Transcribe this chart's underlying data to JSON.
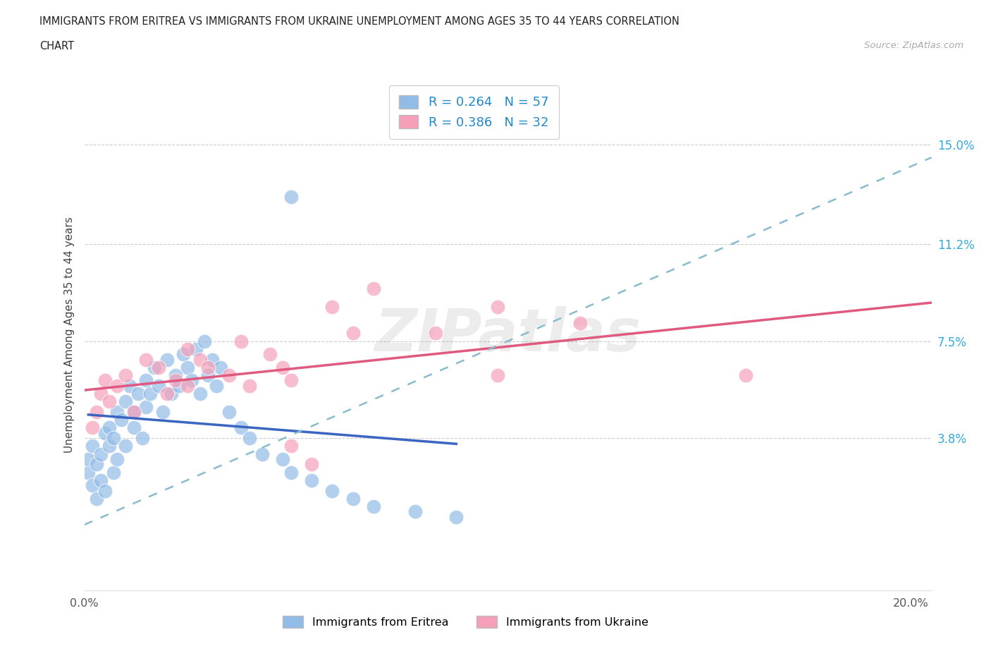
{
  "title_line1": "IMMIGRANTS FROM ERITREA VS IMMIGRANTS FROM UKRAINE UNEMPLOYMENT AMONG AGES 35 TO 44 YEARS CORRELATION",
  "title_line2": "CHART",
  "source": "Source: ZipAtlas.com",
  "ylabel": "Unemployment Among Ages 35 to 44 years",
  "xlim": [
    0.0,
    0.205
  ],
  "ylim": [
    -0.02,
    0.175
  ],
  "ytick_positions": [
    0.038,
    0.075,
    0.112,
    0.15
  ],
  "ytick_labels": [
    "3.8%",
    "7.5%",
    "11.2%",
    "15.0%"
  ],
  "R_eritrea": 0.264,
  "N_eritrea": 57,
  "R_ukraine": 0.386,
  "N_ukraine": 32,
  "color_eritrea": "#92bce8",
  "color_ukraine": "#f5a0b8",
  "color_eritrea_line": "#3a65c0",
  "color_ukraine_line": "#e05a80",
  "color_dashed": "#88bbcc",
  "legend_eritrea": "Immigrants from Eritrea",
  "legend_ukraine": "Immigrants from Ukraine",
  "eritrea_x": [
    0.001,
    0.001,
    0.002,
    0.002,
    0.003,
    0.003,
    0.004,
    0.004,
    0.005,
    0.005,
    0.006,
    0.006,
    0.007,
    0.007,
    0.008,
    0.008,
    0.009,
    0.01,
    0.01,
    0.011,
    0.012,
    0.012,
    0.013,
    0.014,
    0.015,
    0.015,
    0.016,
    0.017,
    0.018,
    0.019,
    0.02,
    0.021,
    0.022,
    0.023,
    0.024,
    0.025,
    0.026,
    0.027,
    0.028,
    0.029,
    0.03,
    0.031,
    0.032,
    0.033,
    0.035,
    0.038,
    0.04,
    0.043,
    0.048,
    0.05,
    0.055,
    0.06,
    0.065,
    0.07,
    0.08,
    0.09,
    0.05
  ],
  "eritrea_y": [
    0.025,
    0.03,
    0.02,
    0.035,
    0.028,
    0.015,
    0.032,
    0.022,
    0.04,
    0.018,
    0.035,
    0.042,
    0.038,
    0.025,
    0.048,
    0.03,
    0.045,
    0.052,
    0.035,
    0.058,
    0.048,
    0.042,
    0.055,
    0.038,
    0.06,
    0.05,
    0.055,
    0.065,
    0.058,
    0.048,
    0.068,
    0.055,
    0.062,
    0.058,
    0.07,
    0.065,
    0.06,
    0.072,
    0.055,
    0.075,
    0.062,
    0.068,
    0.058,
    0.065,
    0.048,
    0.042,
    0.038,
    0.032,
    0.03,
    0.025,
    0.022,
    0.018,
    0.015,
    0.012,
    0.01,
    0.008,
    0.13
  ],
  "ukraine_x": [
    0.002,
    0.003,
    0.004,
    0.005,
    0.006,
    0.008,
    0.01,
    0.012,
    0.015,
    0.018,
    0.02,
    0.022,
    0.025,
    0.025,
    0.028,
    0.03,
    0.035,
    0.038,
    0.04,
    0.045,
    0.048,
    0.05,
    0.06,
    0.065,
    0.07,
    0.085,
    0.1,
    0.12,
    0.16,
    0.1,
    0.05,
    0.055
  ],
  "ukraine_y": [
    0.042,
    0.048,
    0.055,
    0.06,
    0.052,
    0.058,
    0.062,
    0.048,
    0.068,
    0.065,
    0.055,
    0.06,
    0.072,
    0.058,
    0.068,
    0.065,
    0.062,
    0.075,
    0.058,
    0.07,
    0.065,
    0.06,
    0.088,
    0.078,
    0.095,
    0.078,
    0.088,
    0.082,
    0.062,
    0.062,
    0.035,
    0.028
  ]
}
